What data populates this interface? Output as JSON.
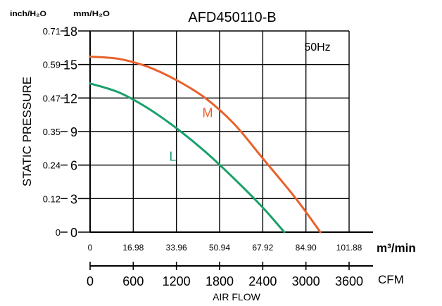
{
  "chart_data": {
    "type": "line",
    "title": "AFD450110-B",
    "annotation": "50Hz",
    "xlabel": "AIR FLOW",
    "ylabel": "STATIC PRESSURE",
    "y_unit_left": "inch/H₂O",
    "y_unit_right": "mm/H₂O",
    "x_unit_top": "m³/min",
    "x_unit_bottom": "CFM",
    "xlim": [
      0,
      3600
    ],
    "ylim": [
      0,
      18
    ],
    "grid": true,
    "y_ticks_mm": [
      "0",
      "3",
      "6",
      "9",
      "12",
      "15",
      "18"
    ],
    "y_ticks_inch": [
      "0",
      "0.12",
      "0.24",
      "0.35",
      "0.47",
      "0.59",
      "0.71"
    ],
    "x_ticks_m3": [
      "0",
      "16.98",
      "33.96",
      "50.94",
      "67.92",
      "84.90",
      "101.88"
    ],
    "x_ticks_cfm": [
      "0",
      "600",
      "1200",
      "1800",
      "2400",
      "3000",
      "3600"
    ],
    "series": [
      {
        "name": "M",
        "color": "#e8622c",
        "x": [
          0,
          400,
          800,
          1200,
          1600,
          2000,
          2400,
          2800,
          3000,
          3200
        ],
        "y": [
          15.7,
          15.5,
          14.8,
          13.6,
          12.0,
          9.7,
          6.6,
          3.5,
          1.8,
          0
        ]
      },
      {
        "name": "L",
        "color": "#1aa06a",
        "x": [
          0,
          400,
          800,
          1200,
          1600,
          2000,
          2400,
          2700
        ],
        "y": [
          13.3,
          12.5,
          11.1,
          9.3,
          7.2,
          4.8,
          2.2,
          0
        ]
      }
    ]
  }
}
